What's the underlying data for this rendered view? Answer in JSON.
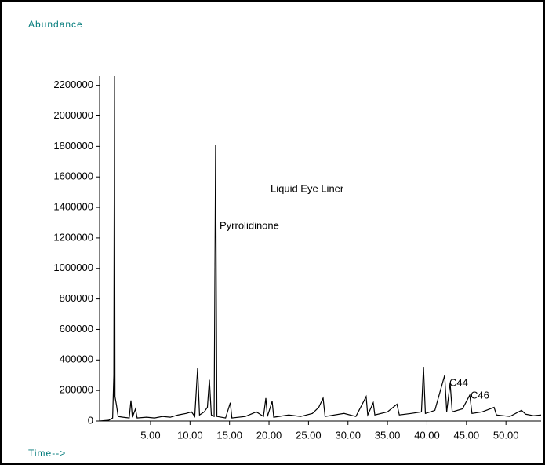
{
  "chart_data": {
    "type": "line",
    "title": "Liquid Eye Liner",
    "y_label": "Abundance",
    "x_label": "Time-->",
    "annotations": [
      "Pyrrolidinone",
      "C44",
      "C46"
    ],
    "series": [
      {
        "color": "#000000",
        "x": [
          -1.45,
          -0.3,
          0.2,
          0.35,
          0.43,
          0.5,
          0.7,
          0.9,
          1.5,
          2.3,
          2.52,
          2.7,
          3.1,
          3.3,
          4.5,
          5.5,
          6.5,
          7.5,
          8.5,
          9.5,
          10.2,
          10.6,
          10.96,
          11.2,
          11.8,
          12.2,
          12.45,
          12.7,
          13.05,
          13.24,
          13.4,
          14.5,
          15.1,
          15.3,
          17.0,
          18.4,
          19.3,
          19.6,
          19.8,
          20.4,
          20.6,
          22.5,
          24.0,
          25.5,
          26.3,
          26.85,
          27.1,
          29.5,
          31.0,
          32.3,
          32.5,
          33.2,
          33.4,
          35.0,
          36.2,
          36.5,
          38.0,
          39.3,
          39.56,
          39.8,
          41.0,
          42.24,
          42.5,
          42.93,
          43.2,
          44.5,
          45.42,
          45.7,
          47.0,
          48.5,
          48.8,
          50.5,
          51.97,
          52.5,
          53.5,
          54.45
        ],
        "values": [
          0,
          5000,
          20000,
          300000,
          2260000,
          160000,
          100000,
          30000,
          25000,
          20000,
          135000,
          25000,
          80000,
          20000,
          25000,
          20000,
          30000,
          25000,
          40000,
          50000,
          60000,
          30000,
          345000,
          40000,
          60000,
          90000,
          270000,
          40000,
          30000,
          1810000,
          30000,
          20000,
          120000,
          20000,
          30000,
          60000,
          30000,
          150000,
          30000,
          130000,
          25000,
          40000,
          30000,
          50000,
          90000,
          150000,
          30000,
          50000,
          30000,
          160000,
          40000,
          120000,
          40000,
          60000,
          110000,
          40000,
          50000,
          60000,
          355000,
          50000,
          70000,
          300000,
          60000,
          250000,
          60000,
          80000,
          170000,
          50000,
          60000,
          90000,
          40000,
          30000,
          70000,
          45000,
          35000,
          40000
        ]
      }
    ],
    "xlim": [
      -1.45,
      54.45
    ],
    "ylim": [
      0,
      2260000
    ],
    "xticks": [
      {
        "value": 5,
        "label": "5.00"
      },
      {
        "value": 10,
        "label": "10.00"
      },
      {
        "value": 15,
        "label": "15.00"
      },
      {
        "value": 20,
        "label": "20.00"
      },
      {
        "value": 25,
        "label": "25.00"
      },
      {
        "value": 30,
        "label": "30.00"
      },
      {
        "value": 35,
        "label": "35.00"
      },
      {
        "value": 40,
        "label": "40.00"
      },
      {
        "value": 45,
        "label": "45.00"
      },
      {
        "value": 50,
        "label": "50.00"
      }
    ],
    "yticks": [
      0,
      200000,
      400000,
      600000,
      800000,
      1000000,
      1200000,
      1400000,
      1600000,
      1800000,
      2000000,
      2200000
    ]
  }
}
